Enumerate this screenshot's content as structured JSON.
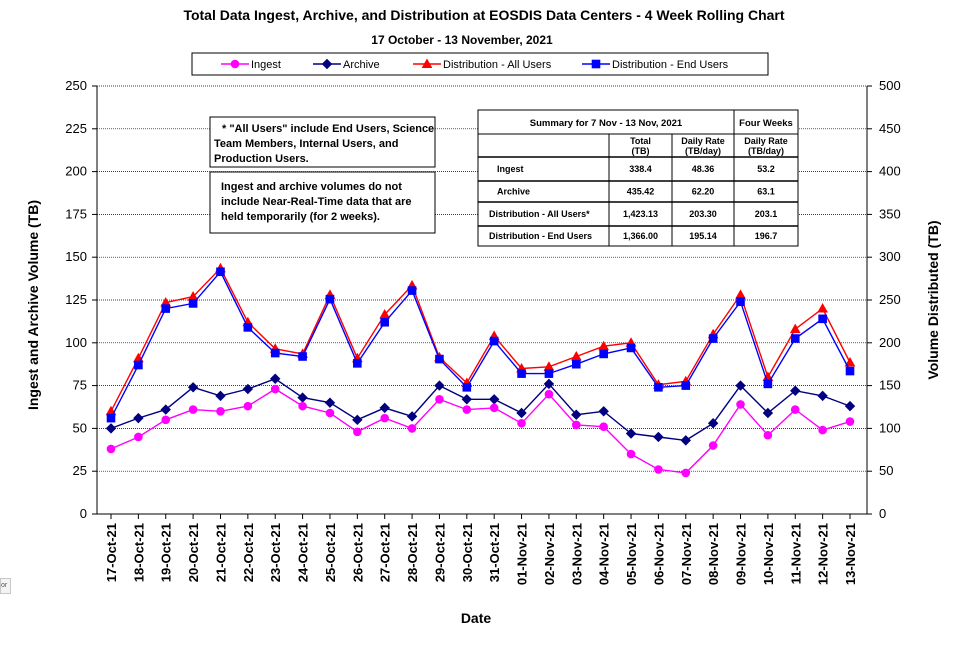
{
  "title": "Total Data Ingest, Archive, and  Distribution at EOSDIS Data Centers - 4 Week Rolling Chart",
  "subtitle": "17  October   - 13  November,  2021",
  "corner_fragment": "or",
  "colors": {
    "ingest": "#ff00ff",
    "archive": "#000080",
    "distribution_all": "#ff0000",
    "distribution_end": "#0000ff"
  },
  "chart_data": {
    "type": "line",
    "title": "Total Data Ingest, Archive, and  Distribution at EOSDIS Data Centers - 4 Week Rolling Chart",
    "subtitle": "17  October   - 13  November,  2021",
    "xlabel": "Date",
    "ylabel": "Ingest and Archive Volume (TB)",
    "y2label": "Volume Distributed (TB)",
    "ylim": [
      0,
      250
    ],
    "y2lim": [
      0,
      500
    ],
    "yticks": [
      "0",
      "25",
      "50",
      "75",
      "100",
      "125",
      "150",
      "175",
      "200",
      "225",
      "250"
    ],
    "y2ticks": [
      "0",
      "50",
      "100",
      "150",
      "200",
      "250",
      "300",
      "350",
      "400",
      "450",
      "500"
    ],
    "grid": true,
    "legend_position": "top",
    "categories": [
      "17-Oct-21",
      "18-Oct-21",
      "19-Oct-21",
      "20-Oct-21",
      "21-Oct-21",
      "22-Oct-21",
      "23-Oct-21",
      "24-Oct-21",
      "25-Oct-21",
      "26-Oct-21",
      "27-Oct-21",
      "28-Oct-21",
      "29-Oct-21",
      "30-Oct-21",
      "31-Oct-21",
      "01-Nov-21",
      "02-Nov-21",
      "03-Nov-21",
      "04-Nov-21",
      "05-Nov-21",
      "06-Nov-21",
      "07-Nov-21",
      "08-Nov-21",
      "09-Nov-21",
      "10-Nov-21",
      "11-Nov-21",
      "12-Nov-21",
      "13-Nov-21"
    ],
    "series": [
      {
        "name": "Ingest",
        "axis": "left",
        "marker": "circle",
        "values": [
          38,
          45,
          55,
          61,
          60,
          63,
          73,
          63,
          59,
          48,
          56,
          50,
          67,
          61,
          62,
          53,
          70,
          52,
          51,
          35,
          26,
          24,
          40,
          64,
          46,
          61,
          49,
          54
        ]
      },
      {
        "name": "Archive",
        "axis": "left",
        "marker": "diamond",
        "values": [
          50,
          56,
          61,
          74,
          69,
          73,
          79,
          68,
          65,
          55,
          62,
          57,
          75,
          67,
          67,
          59,
          76,
          58,
          60,
          47,
          45,
          43,
          53,
          75,
          59,
          72,
          69,
          63
        ]
      },
      {
        "name": "Distribution - All Users",
        "axis": "right",
        "marker": "triangle",
        "values": [
          120,
          182,
          247,
          254,
          287,
          224,
          193,
          187,
          256,
          182,
          233,
          267,
          183,
          153,
          208,
          170,
          172,
          184,
          196,
          200,
          151,
          155,
          210,
          256,
          160,
          216,
          240,
          177
        ]
      },
      {
        "name": "Distribution - End Users",
        "axis": "right",
        "marker": "square",
        "values": [
          112,
          174,
          240,
          246,
          283,
          218,
          188,
          184,
          251,
          176,
          224,
          261,
          181,
          148,
          202,
          164,
          164,
          175,
          187,
          194,
          148,
          150,
          205,
          248,
          152,
          205,
          228,
          167
        ]
      }
    ],
    "annotations": [
      [
        "* \"All Users\" include End Users, Science",
        "Team Members,  Internal Users, and",
        "Production Users."
      ],
      [
        "Ingest and archive volumes do not",
        "include Near-Real-Time data that are",
        "held temporarily (for 2 weeks)."
      ]
    ],
    "summary_table": {
      "header": "Summary  for  7  Nov   -  13  Nov,  2021",
      "header_right": "Four Weeks",
      "columns": [
        [
          "Total",
          "(TB)"
        ],
        [
          "Daily Rate",
          "(TB/day)"
        ],
        [
          "Daily Rate",
          "(TB/day)"
        ]
      ],
      "rows": [
        {
          "label": "Ingest",
          "values": [
            "338.4",
            "48.36",
            "53.2"
          ]
        },
        {
          "label": "Archive",
          "values": [
            "435.42",
            "62.20",
            "63.1"
          ]
        },
        {
          "label": "Distribution - All Users*",
          "values": [
            "1,423.13",
            "203.30",
            "203.1"
          ]
        },
        {
          "label": "Distribution - End Users",
          "values": [
            "1,366.00",
            "195.14",
            "196.7"
          ]
        }
      ]
    }
  }
}
